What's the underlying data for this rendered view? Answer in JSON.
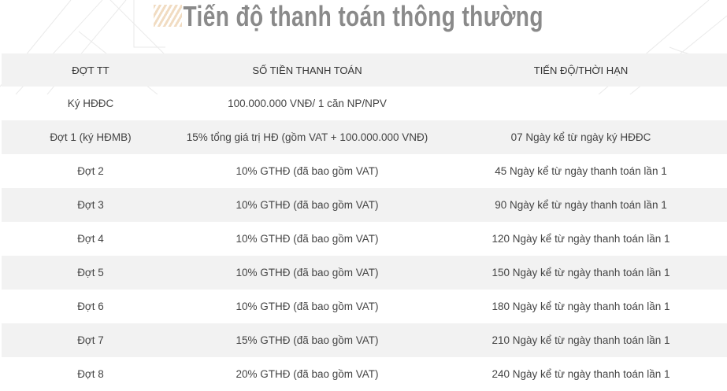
{
  "title": "Tiến độ thanh toán thông thường",
  "table": {
    "headers": [
      "ĐỢT TT",
      "SỐ TIỀN THANH TOÁN",
      "TIẾN ĐỘ/THỜI HẠN"
    ],
    "rows": [
      [
        "Ký HĐĐC",
        "100.000.000 VNĐ/ 1 căn NP/NPV",
        ""
      ],
      [
        "Đợt 1 (ký HĐMB)",
        "15% tổng giá trị HĐ (gồm VAT + 100.000.000 VNĐ)",
        "07 Ngày kể từ ngày ký HĐĐC"
      ],
      [
        "Đợt 2",
        "10% GTHĐ (đã bao gồm VAT)",
        "45 Ngày kể từ ngày thanh toán lần 1"
      ],
      [
        "Đợt 3",
        "10% GTHĐ (đã bao gồm VAT)",
        "90 Ngày kể từ ngày thanh toán lần 1"
      ],
      [
        "Đợt 4",
        "10% GTHĐ (đã bao gồm VAT)",
        "120 Ngày kể từ ngày thanh toán lần 1"
      ],
      [
        "Đợt 5",
        "10% GTHĐ (đã bao gồm VAT)",
        "150 Ngày kể từ ngày thanh toán lần 1"
      ],
      [
        "Đợt 6",
        "10% GTHĐ (đã bao gồm VAT)",
        "180 Ngày kể từ ngày thanh toán lần 1"
      ],
      [
        "Đợt 7",
        "15% GTHĐ (đã bao gồm VAT)",
        "210 Ngày kể từ ngày thanh toán lần 1"
      ],
      [
        "Đợt 8",
        "20% GTHĐ (đã bao gồm VAT)",
        "240 Ngày kể từ ngày thanh toán lần 1"
      ]
    ]
  }
}
